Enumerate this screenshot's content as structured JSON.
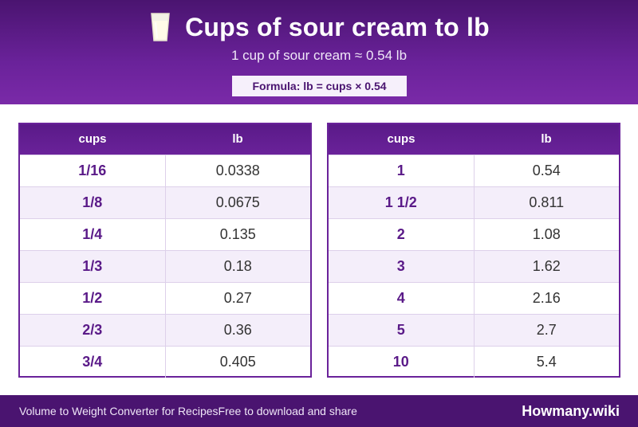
{
  "header": {
    "icon": "glass-of-milk-icon",
    "title": "Cups of sour cream to lb",
    "subtitle": "1 cup of sour cream ≈ 0.54 lb",
    "formula": "Formula: lb = cups × 0.54"
  },
  "tables": [
    {
      "col_a": "cups",
      "col_b": "lb",
      "rows": [
        {
          "a": "1/16",
          "b": "0.0338"
        },
        {
          "a": "1/8",
          "b": "0.0675"
        },
        {
          "a": "1/4",
          "b": "0.135"
        },
        {
          "a": "1/3",
          "b": "0.18"
        },
        {
          "a": "1/2",
          "b": "0.27"
        },
        {
          "a": "2/3",
          "b": "0.36"
        },
        {
          "a": "3/4",
          "b": "0.405"
        }
      ]
    },
    {
      "col_a": "cups",
      "col_b": "lb",
      "rows": [
        {
          "a": "1",
          "b": "0.54"
        },
        {
          "a": "1 1/2",
          "b": "0.811"
        },
        {
          "a": "2",
          "b": "1.08"
        },
        {
          "a": "3",
          "b": "1.62"
        },
        {
          "a": "4",
          "b": "2.16"
        },
        {
          "a": "5",
          "b": "2.7"
        },
        {
          "a": "10",
          "b": "5.4"
        }
      ]
    }
  ],
  "footer": {
    "left_text": "Volume to Weight Converter for RecipesFree to download and share",
    "brand": "Howmany.wiki"
  },
  "colors": {
    "primary": "#6a229a",
    "dark": "#4a1470",
    "row_alt": "#f4eefa"
  }
}
